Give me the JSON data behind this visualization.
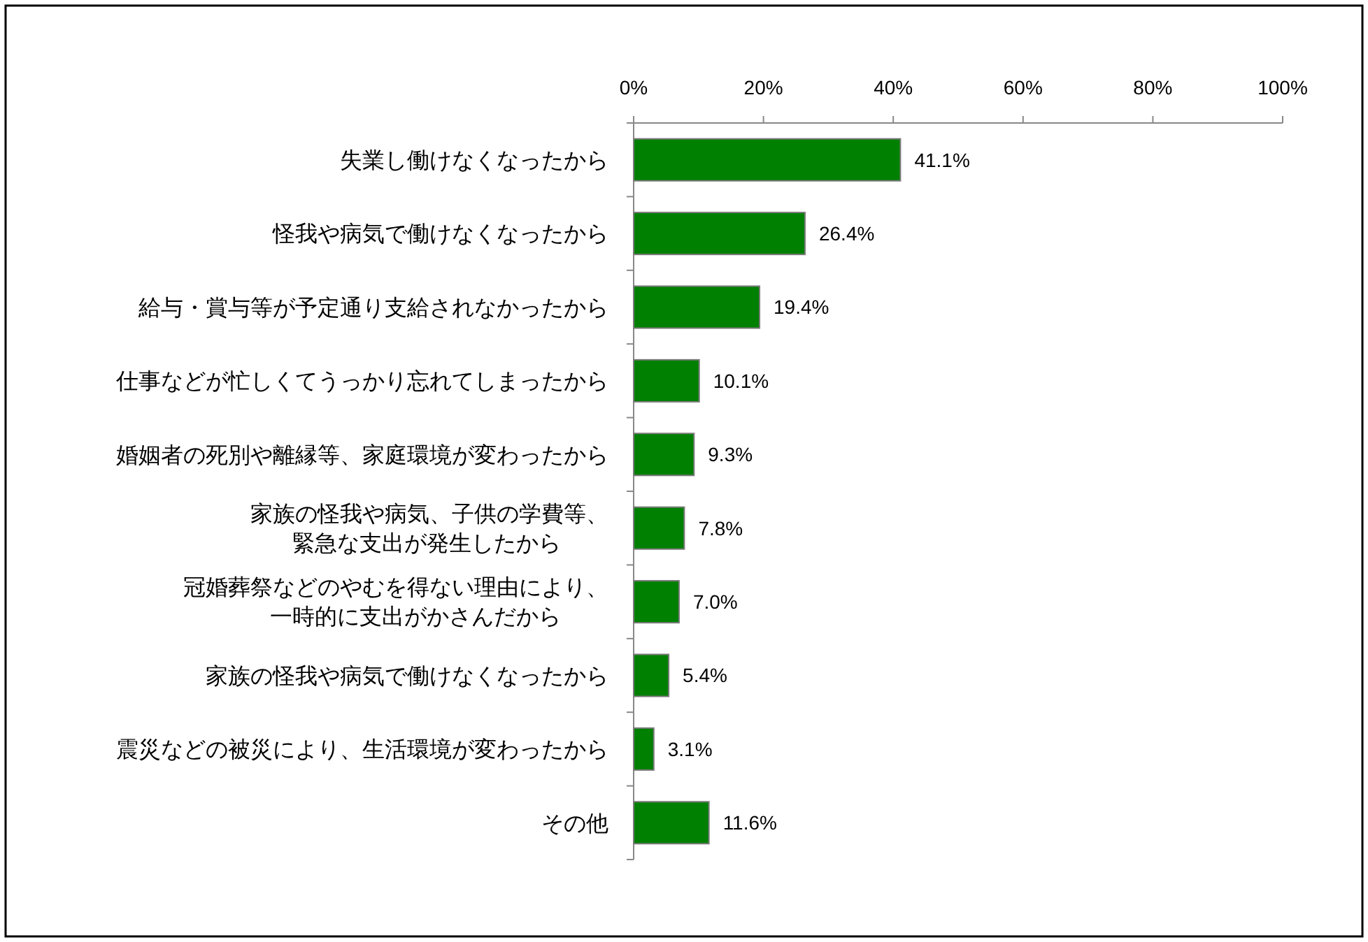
{
  "chart_data": {
    "type": "bar",
    "orientation": "horizontal",
    "categories": [
      "失業し働けなくなったから",
      "怪我や病気で働けなくなったから",
      "給与・賞与等が予定通り支給されなかったから",
      "仕事などが忙しくてうっかり忘れてしまったから",
      "婚姻者の死別や離縁等、家庭環境が変わったから",
      "家族の怪我や病気、子供の学費等、緊急な支出が発生したから",
      "冠婚葬祭などのやむを得ない理由により、一時的に支出がかさんだから",
      "家族の怪我や病気で働けなくなったから",
      "震災などの被災により、生活環境が変わったから",
      "その他"
    ],
    "values": [
      41.1,
      26.4,
      19.4,
      10.1,
      9.3,
      7.8,
      7.0,
      5.4,
      3.1,
      11.6
    ],
    "value_labels": [
      "41.1%",
      "26.4%",
      "19.4%",
      "10.1%",
      "9.3%",
      "7.8%",
      "7.0%",
      "5.4%",
      "3.1%",
      "11.6%"
    ],
    "color": "#008000",
    "xlim": [
      0,
      100
    ],
    "xticks": [
      {
        "value": 0,
        "label": "0%"
      },
      {
        "value": 20,
        "label": "20%"
      },
      {
        "value": 40,
        "label": "40%"
      },
      {
        "value": 60,
        "label": "60%"
      },
      {
        "value": 80,
        "label": "80%"
      },
      {
        "value": 100,
        "label": "100%"
      }
    ],
    "grid": false,
    "legend": false
  }
}
